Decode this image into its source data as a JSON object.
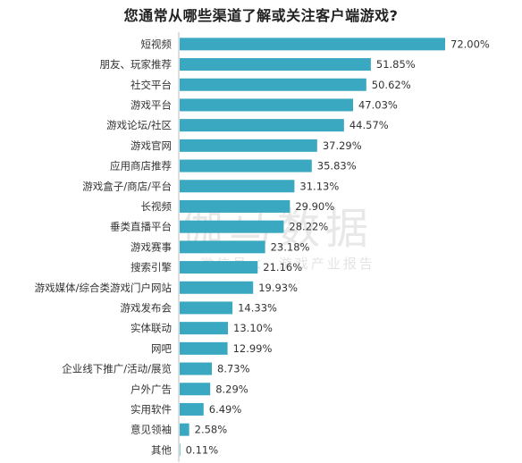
{
  "chart_data": {
    "type": "bar",
    "orientation": "horizontal",
    "title": "您通常从哪些渠道了解或关注客户端游戏?",
    "categories": [
      "短视频",
      "朋友、玩家推荐",
      "社交平台",
      "游戏平台",
      "游戏论坛/社区",
      "游戏官网",
      "应用商店推荐",
      "游戏盒子/商店/平台",
      "长视频",
      "垂类直播平台",
      "游戏赛事",
      "搜索引擎",
      "游戏媒体/综合类游戏门户网站",
      "游戏发布会",
      "实体联动",
      "网吧",
      "企业线下推广/活动/展览",
      "户外广告",
      "实用软件",
      "意见领袖",
      "其他"
    ],
    "values": [
      72.0,
      51.85,
      50.62,
      47.03,
      44.57,
      37.29,
      35.83,
      31.13,
      29.9,
      28.22,
      23.18,
      21.16,
      19.93,
      14.33,
      13.1,
      12.99,
      8.73,
      8.29,
      6.49,
      2.58,
      0.11
    ],
    "value_labels": [
      "72.00%",
      "51.85%",
      "50.62%",
      "47.03%",
      "44.57%",
      "37.29%",
      "35.83%",
      "31.13%",
      "29.90%",
      "28.22%",
      "23.18%",
      "21.16%",
      "19.93%",
      "14.33%",
      "13.10%",
      "12.99%",
      "8.73%",
      "8.29%",
      "6.49%",
      "2.58%",
      "0.11%"
    ],
    "xlim": [
      0,
      72
    ],
    "grid": false,
    "bar_color": "#3aa8c1",
    "axis_color": "#bbbbbb",
    "watermark": {
      "main": "伽马数据",
      "sub": "微信号 ： 游戏产业报告"
    }
  }
}
